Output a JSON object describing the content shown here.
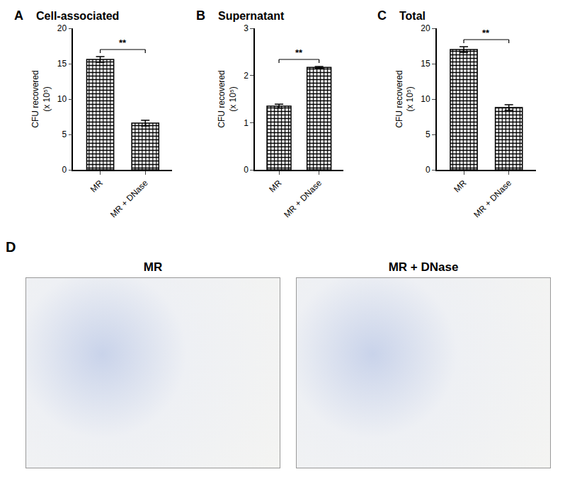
{
  "chart_data": [
    {
      "type": "bar",
      "label": "A",
      "title": "Cell-associated",
      "y_label": [
        "CFU recovered",
        "(x 10⁵)"
      ],
      "categories": [
        "MR",
        "MR + DNase"
      ],
      "values": [
        15.6,
        6.6
      ],
      "errors": [
        0.4,
        0.4
      ],
      "ylim": [
        0,
        20
      ],
      "yticks": [
        0,
        5,
        10,
        15,
        20
      ],
      "color": "#000000",
      "annotations": [
        {
          "text": "**",
          "between": [
            "MR",
            "MR + DNase"
          ]
        }
      ]
    },
    {
      "type": "bar",
      "label": "B",
      "title": "Supernatant",
      "y_label": [
        "CFU recovered",
        "(x 10⁵)"
      ],
      "categories": [
        "MR",
        "MR + DNase"
      ],
      "values": [
        1.35,
        2.17
      ],
      "errors": [
        0.04,
        0.02
      ],
      "ylim": [
        0,
        3
      ],
      "yticks": [
        0,
        1,
        2,
        3
      ],
      "color": "#000000",
      "annotations": [
        {
          "text": "**",
          "between": [
            "MR",
            "MR + DNase"
          ]
        }
      ]
    },
    {
      "type": "bar",
      "label": "C",
      "title": "Total",
      "y_label": [
        "CFU recovered",
        "(x 10⁵)"
      ],
      "categories": [
        "MR",
        "MR + DNase"
      ],
      "values": [
        17.0,
        8.8
      ],
      "errors": [
        0.4,
        0.4
      ],
      "ylim": [
        0,
        20
      ],
      "yticks": [
        0,
        5,
        10,
        15,
        20
      ],
      "color": "#000000",
      "annotations": [
        {
          "text": "**",
          "between": [
            "MR",
            "MR + DNase"
          ]
        }
      ]
    }
  ],
  "panel_d": {
    "label": "D",
    "images": [
      {
        "title": "MR"
      },
      {
        "title": "MR + DNase"
      }
    ]
  }
}
